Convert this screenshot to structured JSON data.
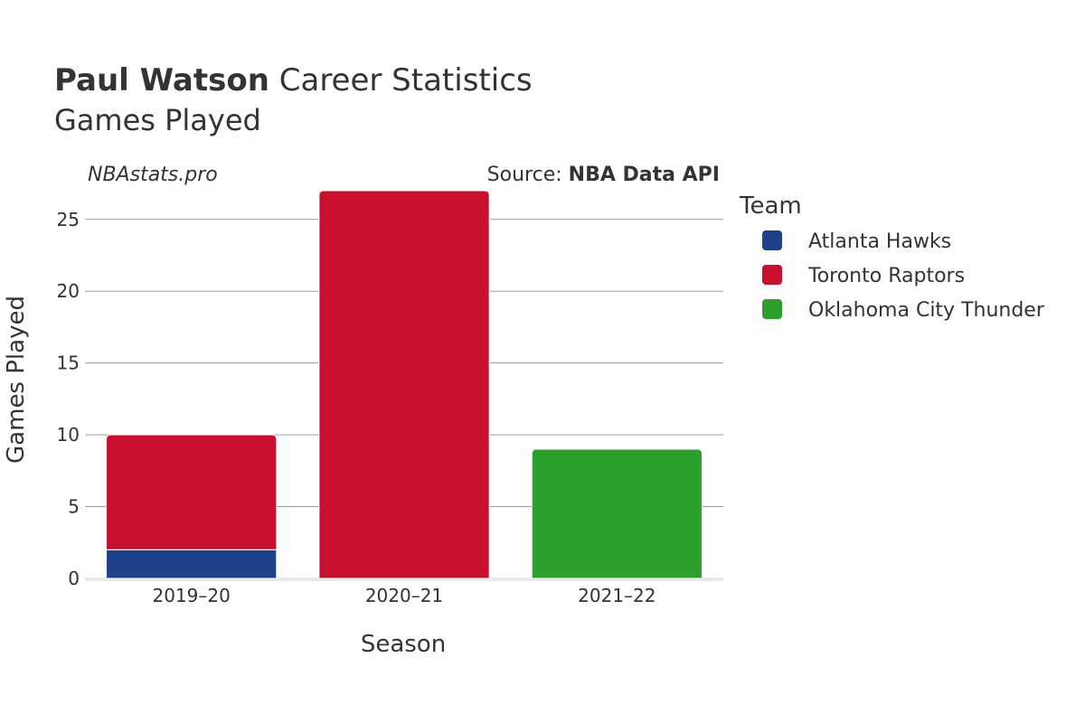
{
  "chart_data": {
    "type": "bar",
    "stacked": true,
    "title": {
      "player": "Paul Watson",
      "suffix": "Career Statistics"
    },
    "subtitle": "Games Played",
    "watermark": "NBAstats.pro",
    "source": {
      "prefix": "Source:",
      "name": "NBA Data API"
    },
    "xlabel": "Season",
    "ylabel": "Games Played",
    "ylim": [
      0,
      27
    ],
    "yticks": [
      0,
      5,
      10,
      15,
      20,
      25
    ],
    "categories": [
      "2019–20",
      "2020–21",
      "2021–22"
    ],
    "legend_title": "Team",
    "legend_position": "right",
    "series": [
      {
        "name": "Atlanta Hawks",
        "color": "#1d428a",
        "values": [
          2,
          0,
          0
        ]
      },
      {
        "name": "Toronto Raptors",
        "color": "#c8102e",
        "values": [
          8,
          27,
          0
        ]
      },
      {
        "name": "Oklahoma City Thunder",
        "color": "#2ca02c",
        "values": [
          0,
          0,
          9
        ]
      }
    ]
  }
}
